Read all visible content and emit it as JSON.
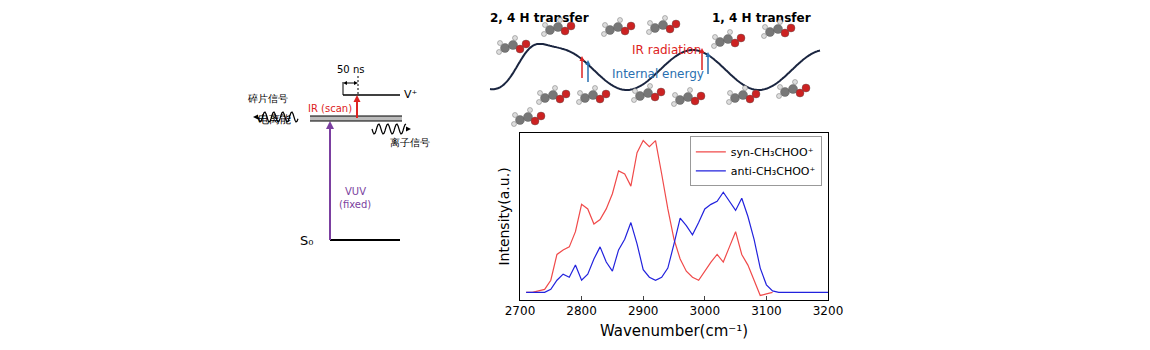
{
  "energy_diagram": {
    "levels": {
      "ground": "S₀",
      "ionization": "电离能",
      "vib": "V⁺"
    },
    "excitation": {
      "label": "VUV",
      "note": "(fixed)"
    },
    "ir": {
      "label": "IR (scan)"
    },
    "delay": "50 ns",
    "signals": {
      "fragment": "碎片信号",
      "ion": "离子信号"
    }
  },
  "scheme": {
    "left_label": "2, 4 H transfer",
    "right_label": "1, 4 H transfer",
    "ir": "IR radiation",
    "energy": "Internal energy"
  },
  "chart_data": {
    "type": "line",
    "x_label": "Wavenumber(cm⁻¹)",
    "y_label": "Intensity(a.u.)",
    "xlim": [
      2700,
      3200
    ],
    "xticks": [
      2700,
      2800,
      2900,
      3000,
      3100,
      3200
    ],
    "ylim": [
      -0.05,
      1.05
    ],
    "tick_labels": "x",
    "legend": "upper right",
    "series": [
      {
        "name": "syn-CH₃CHOO⁺",
        "color": "#f04a4a",
        "x": [
          2710,
          2720,
          2730,
          2740,
          2750,
          2760,
          2770,
          2780,
          2790,
          2800,
          2810,
          2820,
          2830,
          2840,
          2850,
          2860,
          2870,
          2880,
          2890,
          2900,
          2910,
          2920,
          2930,
          2940,
          2950,
          2960,
          2970,
          2980,
          2990,
          3000,
          3010,
          3020,
          3030,
          3040,
          3050,
          3060,
          3070,
          3080,
          3090,
          3100,
          3110
        ],
        "values": [
          0.0,
          0.0,
          0.01,
          0.02,
          0.08,
          0.25,
          0.28,
          0.3,
          0.4,
          0.58,
          0.55,
          0.45,
          0.48,
          0.55,
          0.65,
          0.8,
          0.78,
          0.7,
          0.92,
          1.0,
          0.96,
          1.0,
          0.78,
          0.55,
          0.35,
          0.22,
          0.14,
          0.1,
          0.08,
          0.14,
          0.2,
          0.25,
          0.2,
          0.3,
          0.4,
          0.25,
          0.18,
          0.08,
          -0.02,
          -0.01,
          0.0
        ]
      },
      {
        "name": "anti-CH₃CHOO⁺",
        "color": "#2222dd",
        "x": [
          2710,
          2720,
          2730,
          2740,
          2750,
          2760,
          2770,
          2780,
          2790,
          2800,
          2810,
          2820,
          2830,
          2840,
          2850,
          2860,
          2870,
          2880,
          2890,
          2900,
          2910,
          2920,
          2930,
          2940,
          2950,
          2960,
          2970,
          2980,
          2990,
          3000,
          3010,
          3020,
          3030,
          3040,
          3050,
          3060,
          3070,
          3080,
          3090,
          3100,
          3110,
          3120,
          3130,
          3140,
          3150,
          3160,
          3170,
          3180,
          3190,
          3200
        ],
        "values": [
          0.0,
          0.0,
          0.0,
          0.0,
          0.02,
          0.08,
          0.12,
          0.1,
          0.18,
          0.08,
          0.12,
          0.22,
          0.3,
          0.2,
          0.14,
          0.28,
          0.35,
          0.46,
          0.32,
          0.15,
          0.1,
          0.08,
          0.1,
          0.16,
          0.32,
          0.49,
          0.44,
          0.38,
          0.46,
          0.55,
          0.58,
          0.6,
          0.66,
          0.6,
          0.54,
          0.62,
          0.5,
          0.35,
          0.16,
          0.05,
          0.01,
          0.0,
          0.0,
          0.0,
          0.0,
          0.0,
          0.0,
          0.0,
          0.0,
          0.0
        ]
      }
    ]
  }
}
